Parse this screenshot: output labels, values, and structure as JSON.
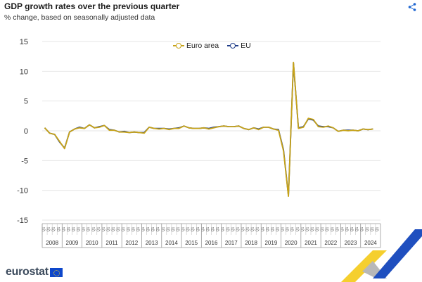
{
  "header": {
    "title": "GDP growth rates over the previous quarter",
    "subtitle": "% change, based on seasonally adjusted data"
  },
  "branding": {
    "logo_text": "eurostat"
  },
  "colors": {
    "euro_area": "#c7a318",
    "eu": "#1f3c88",
    "grid": "#e6e6e6"
  },
  "icons": {
    "share": "share-icon",
    "flag": "eu-flag-icon"
  },
  "legend": [
    {
      "label": "Euro area",
      "color": "#c7a318"
    },
    {
      "label": "EU",
      "color": "#1f3c88"
    }
  ],
  "chart_data": {
    "type": "line",
    "title": "GDP growth rates over the previous quarter",
    "subtitle": "% change, based on seasonally adjusted data",
    "ylim": [
      -15,
      15
    ],
    "yticks": [
      15,
      10,
      5,
      0,
      -5,
      -10,
      -15
    ],
    "grid": true,
    "legend_position": "top-center",
    "x_quarter_label": "Q1",
    "years": [
      "2008",
      "2009",
      "2010",
      "2011",
      "2012",
      "2013",
      "2014",
      "2015",
      "2016",
      "2017",
      "2018",
      "2019",
      "2020",
      "2021",
      "2022",
      "2023",
      "2024"
    ],
    "quarters_per_year": 4,
    "series": [
      {
        "name": "Euro area",
        "color": "#c7a318",
        "values": [
          0.5,
          -0.4,
          -0.6,
          -1.8,
          -3.0,
          -0.2,
          0.3,
          0.5,
          0.4,
          1.0,
          0.5,
          0.6,
          0.9,
          0.1,
          0.1,
          -0.2,
          -0.2,
          -0.3,
          -0.2,
          -0.3,
          -0.4,
          0.6,
          0.4,
          0.3,
          0.4,
          0.2,
          0.4,
          0.4,
          0.8,
          0.5,
          0.4,
          0.4,
          0.5,
          0.3,
          0.5,
          0.7,
          0.8,
          0.7,
          0.7,
          0.8,
          0.4,
          0.2,
          0.5,
          0.2,
          0.6,
          0.6,
          0.3,
          0.1,
          -3.4,
          -11.0,
          11.5,
          0.4,
          0.6,
          2.1,
          1.9,
          0.7,
          0.6,
          0.8,
          0.5,
          -0.1,
          0.1,
          0.0,
          0.1,
          0.0,
          0.3,
          0.2,
          0.3
        ]
      },
      {
        "name": "EU",
        "color": "#1f3c88",
        "values": [
          0.5,
          -0.4,
          -0.6,
          -1.9,
          -2.9,
          -0.2,
          0.3,
          0.6,
          0.4,
          1.0,
          0.5,
          0.7,
          0.9,
          0.2,
          0.1,
          -0.2,
          -0.1,
          -0.3,
          -0.2,
          -0.3,
          -0.3,
          0.6,
          0.4,
          0.4,
          0.4,
          0.3,
          0.4,
          0.5,
          0.8,
          0.5,
          0.4,
          0.4,
          0.5,
          0.4,
          0.6,
          0.7,
          0.8,
          0.7,
          0.7,
          0.8,
          0.4,
          0.2,
          0.5,
          0.3,
          0.6,
          0.6,
          0.3,
          0.2,
          -3.2,
          -10.9,
          11.4,
          0.5,
          0.7,
          2.0,
          1.8,
          0.8,
          0.7,
          0.7,
          0.5,
          -0.1,
          0.1,
          0.1,
          0.1,
          0.0,
          0.3,
          0.2,
          0.3
        ]
      }
    ]
  }
}
